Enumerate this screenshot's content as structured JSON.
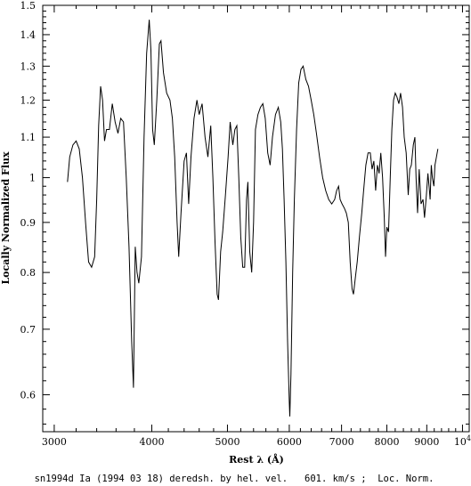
{
  "chart_data": {
    "type": "line",
    "caption": "sn1994d Ia (1994 03 18) deredsh. by hel. vel.   601. km/s ;  Loc. Norm.",
    "xlabel": "Rest λ (Å)",
    "ylabel": "Locally Normalized Flux",
    "x_scale": "log",
    "y_scale": "log",
    "xlim": [
      2900,
      10200
    ],
    "ylim": [
      0.55,
      1.5
    ],
    "x_ticks": [
      {
        "value": 3000,
        "label": "3000"
      },
      {
        "value": 4000,
        "label": "4000"
      },
      {
        "value": 5000,
        "label": "5000"
      },
      {
        "value": 6000,
        "label": "6000"
      },
      {
        "value": 7000,
        "label": "7000"
      },
      {
        "value": 8000,
        "label": "8000"
      },
      {
        "value": 9000,
        "label": "9000"
      },
      {
        "value": 10000,
        "label": "10",
        "sup": "4"
      }
    ],
    "y_ticks": [
      {
        "value": 0.6,
        "label": "0.6"
      },
      {
        "value": 0.7,
        "label": "0.7"
      },
      {
        "value": 0.8,
        "label": "0.8"
      },
      {
        "value": 0.9,
        "label": "0.9"
      },
      {
        "value": 1.0,
        "label": "1"
      },
      {
        "value": 1.1,
        "label": "1.1"
      },
      {
        "value": 1.2,
        "label": "1.2"
      },
      {
        "value": 1.3,
        "label": "1.3"
      },
      {
        "value": 1.4,
        "label": "1.4"
      },
      {
        "value": 1.5,
        "label": "1.5"
      }
    ],
    "grid": false,
    "series": [
      {
        "color": "#000000",
        "points": [
          [
            3120,
            0.99
          ],
          [
            3140,
            1.05
          ],
          [
            3170,
            1.08
          ],
          [
            3200,
            1.09
          ],
          [
            3230,
            1.07
          ],
          [
            3260,
            1.0
          ],
          [
            3290,
            0.9
          ],
          [
            3320,
            0.82
          ],
          [
            3350,
            0.81
          ],
          [
            3380,
            0.83
          ],
          [
            3400,
            0.95
          ],
          [
            3420,
            1.13
          ],
          [
            3440,
            1.24
          ],
          [
            3460,
            1.2
          ],
          [
            3480,
            1.09
          ],
          [
            3500,
            1.12
          ],
          [
            3530,
            1.12
          ],
          [
            3560,
            1.19
          ],
          [
            3590,
            1.14
          ],
          [
            3620,
            1.11
          ],
          [
            3650,
            1.15
          ],
          [
            3680,
            1.14
          ],
          [
            3710,
            1.0
          ],
          [
            3740,
            0.85
          ],
          [
            3770,
            0.68
          ],
          [
            3790,
            0.61
          ],
          [
            3810,
            0.85
          ],
          [
            3830,
            0.8
          ],
          [
            3850,
            0.78
          ],
          [
            3880,
            0.83
          ],
          [
            3910,
            1.1
          ],
          [
            3940,
            1.34
          ],
          [
            3970,
            1.45
          ],
          [
            3990,
            1.35
          ],
          [
            4010,
            1.12
          ],
          [
            4030,
            1.08
          ],
          [
            4060,
            1.2
          ],
          [
            4090,
            1.37
          ],
          [
            4110,
            1.38
          ],
          [
            4140,
            1.28
          ],
          [
            4180,
            1.22
          ],
          [
            4220,
            1.2
          ],
          [
            4250,
            1.15
          ],
          [
            4280,
            1.05
          ],
          [
            4310,
            0.9
          ],
          [
            4330,
            0.83
          ],
          [
            4360,
            0.92
          ],
          [
            4400,
            1.04
          ],
          [
            4430,
            1.06
          ],
          [
            4460,
            0.94
          ],
          [
            4490,
            1.05
          ],
          [
            4530,
            1.15
          ],
          [
            4570,
            1.2
          ],
          [
            4600,
            1.16
          ],
          [
            4640,
            1.19
          ],
          [
            4680,
            1.1
          ],
          [
            4720,
            1.05
          ],
          [
            4760,
            1.13
          ],
          [
            4790,
            1.0
          ],
          [
            4820,
            0.86
          ],
          [
            4850,
            0.76
          ],
          [
            4870,
            0.75
          ],
          [
            4900,
            0.84
          ],
          [
            4930,
            0.88
          ],
          [
            4970,
            0.96
          ],
          [
            5010,
            1.05
          ],
          [
            5040,
            1.14
          ],
          [
            5080,
            1.08
          ],
          [
            5110,
            1.12
          ],
          [
            5140,
            1.13
          ],
          [
            5170,
            1.0
          ],
          [
            5200,
            0.87
          ],
          [
            5230,
            0.81
          ],
          [
            5260,
            0.81
          ],
          [
            5290,
            0.95
          ],
          [
            5310,
            0.99
          ],
          [
            5340,
            0.84
          ],
          [
            5370,
            0.8
          ],
          [
            5400,
            0.9
          ],
          [
            5430,
            1.12
          ],
          [
            5470,
            1.16
          ],
          [
            5510,
            1.18
          ],
          [
            5550,
            1.19
          ],
          [
            5590,
            1.15
          ],
          [
            5630,
            1.06
          ],
          [
            5670,
            1.03
          ],
          [
            5710,
            1.1
          ],
          [
            5760,
            1.16
          ],
          [
            5810,
            1.18
          ],
          [
            5850,
            1.14
          ],
          [
            5880,
            1.07
          ],
          [
            5910,
            0.95
          ],
          [
            5940,
            0.82
          ],
          [
            5970,
            0.68
          ],
          [
            6000,
            0.59
          ],
          [
            6010,
            0.57
          ],
          [
            6030,
            0.63
          ],
          [
            6060,
            0.8
          ],
          [
            6090,
            0.95
          ],
          [
            6130,
            1.12
          ],
          [
            6170,
            1.25
          ],
          [
            6210,
            1.29
          ],
          [
            6250,
            1.3
          ],
          [
            6300,
            1.26
          ],
          [
            6350,
            1.24
          ],
          [
            6400,
            1.2
          ],
          [
            6450,
            1.16
          ],
          [
            6500,
            1.11
          ],
          [
            6560,
            1.05
          ],
          [
            6620,
            1.0
          ],
          [
            6680,
            0.97
          ],
          [
            6740,
            0.95
          ],
          [
            6800,
            0.94
          ],
          [
            6860,
            0.95
          ],
          [
            6900,
            0.97
          ],
          [
            6940,
            0.98
          ],
          [
            6970,
            0.95
          ],
          [
            7010,
            0.94
          ],
          [
            7060,
            0.93
          ],
          [
            7100,
            0.92
          ],
          [
            7140,
            0.9
          ],
          [
            7180,
            0.82
          ],
          [
            7220,
            0.77
          ],
          [
            7250,
            0.76
          ],
          [
            7290,
            0.79
          ],
          [
            7330,
            0.82
          ],
          [
            7380,
            0.87
          ],
          [
            7430,
            0.92
          ],
          [
            7470,
            0.97
          ],
          [
            7520,
            1.03
          ],
          [
            7570,
            1.06
          ],
          [
            7620,
            1.06
          ],
          [
            7660,
            1.02
          ],
          [
            7700,
            1.04
          ],
          [
            7740,
            0.97
          ],
          [
            7780,
            1.03
          ],
          [
            7820,
            1.01
          ],
          [
            7860,
            1.06
          ],
          [
            7900,
            1.0
          ],
          [
            7940,
            0.91
          ],
          [
            7970,
            0.83
          ],
          [
            8000,
            0.89
          ],
          [
            8040,
            0.88
          ],
          [
            8080,
            1.0
          ],
          [
            8120,
            1.12
          ],
          [
            8160,
            1.2
          ],
          [
            8200,
            1.22
          ],
          [
            8240,
            1.21
          ],
          [
            8290,
            1.19
          ],
          [
            8330,
            1.22
          ],
          [
            8380,
            1.18
          ],
          [
            8420,
            1.1
          ],
          [
            8470,
            1.06
          ],
          [
            8520,
            0.96
          ],
          [
            8560,
            1.02
          ],
          [
            8600,
            1.03
          ],
          [
            8650,
            1.08
          ],
          [
            8690,
            1.1
          ],
          [
            8720,
            1.0
          ],
          [
            8760,
            0.92
          ],
          [
            8800,
            1.02
          ],
          [
            8850,
            0.94
          ],
          [
            8900,
            0.95
          ],
          [
            8940,
            0.91
          ],
          [
            8990,
            0.96
          ],
          [
            9030,
            1.01
          ],
          [
            9060,
            0.98
          ],
          [
            9090,
            0.95
          ],
          [
            9120,
            1.03
          ],
          [
            9150,
            1.0
          ],
          [
            9190,
            0.98
          ],
          [
            9220,
            1.03
          ],
          [
            9260,
            1.05
          ],
          [
            9300,
            1.07
          ]
        ]
      }
    ]
  }
}
